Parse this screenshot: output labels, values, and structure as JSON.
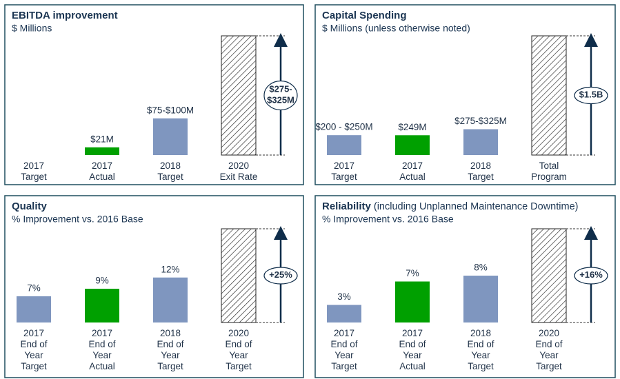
{
  "chart_data": [
    {
      "type": "bar",
      "title": "EBITDA improvement",
      "subtitle": "$ Millions",
      "categories": [
        "2017\nTarget",
        "2017\nActual",
        "2018\nTarget",
        "2020\nExit  Rate"
      ],
      "values": [
        null,
        21,
        100,
        325
      ],
      "value_labels": [
        null,
        "$21M",
        "$75-$100M",
        "$275-\n$325M"
      ],
      "colors": [
        "#7f96bf",
        "#00a000",
        "#7f96bf",
        "#ffffff"
      ],
      "hatched": [
        false,
        false,
        false,
        true
      ],
      "ylim": [
        0,
        325
      ]
    },
    {
      "type": "bar",
      "title": "Capital Spending",
      "subtitle": "$ Millions  (unless otherwise noted)",
      "categories": [
        "2017\nTarget",
        "2017\nActual",
        "2018\nTarget",
        "Total\nProgram"
      ],
      "values": [
        250,
        249,
        325,
        1500
      ],
      "value_labels": [
        "$200 - $250M",
        "$249M",
        "$275-$325M",
        "$1.5B"
      ],
      "colors": [
        "#7f96bf",
        "#00a000",
        "#7f96bf",
        "#ffffff"
      ],
      "hatched": [
        false,
        false,
        false,
        true
      ],
      "ylim": [
        0,
        1500
      ]
    },
    {
      "type": "bar",
      "title": "Quality",
      "subtitle": "% Improvement vs. 2016 Base",
      "categories": [
        "2017\nEnd of\nYear\nTarget",
        "2017\nEnd of\nYear\nActual",
        "2018\nEnd of\nYear\nTarget",
        "2020\nEnd of\nYear\nTarget"
      ],
      "values": [
        7,
        9,
        12,
        25
      ],
      "value_labels": [
        "7%",
        "9%",
        "12%",
        "+25%"
      ],
      "colors": [
        "#7f96bf",
        "#00a000",
        "#7f96bf",
        "#ffffff"
      ],
      "hatched": [
        false,
        false,
        false,
        true
      ],
      "ylim": [
        0,
        25
      ]
    },
    {
      "type": "bar",
      "title": "Reliability",
      "title_note": "(including Unplanned Maintenance Downtime)",
      "subtitle": "% Improvement vs. 2016 Base",
      "categories": [
        "2017\nEnd of\nYear\nTarget",
        "2017\nEnd of\nYear\nActual",
        "2018\nEnd of\nYear\nTarget",
        "2020\nEnd of\nYear\nTarget"
      ],
      "values": [
        3,
        7,
        8,
        16
      ],
      "value_labels": [
        "3%",
        "7%",
        "8%",
        "+16%"
      ],
      "colors": [
        "#7f96bf",
        "#00a000",
        "#7f96bf",
        "#ffffff"
      ],
      "hatched": [
        false,
        false,
        false,
        true
      ],
      "ylim": [
        0,
        16
      ]
    }
  ]
}
